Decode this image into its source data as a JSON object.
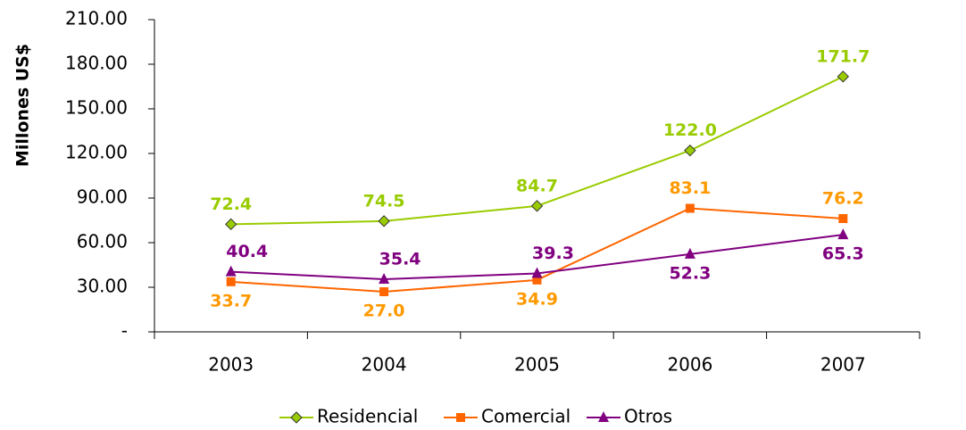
{
  "chart_data": {
    "type": "line",
    "ylabel": "Millones US$",
    "categories": [
      "2003",
      "2004",
      "2005",
      "2006",
      "2007"
    ],
    "series": [
      {
        "name": "Residencial",
        "color": "#99cc00",
        "label_color": "#99cc00",
        "marker": "diamond",
        "values": [
          72.4,
          74.5,
          84.7,
          122.0,
          171.7
        ],
        "value_labels": [
          "72.4",
          "74.5",
          "84.7",
          "122.0",
          "171.7"
        ]
      },
      {
        "name": "Comercial",
        "color": "#ff6600",
        "label_color": "#ff9900",
        "marker": "square",
        "values": [
          33.7,
          27.0,
          34.9,
          83.1,
          76.2
        ],
        "value_labels": [
          "33.7",
          "27.0",
          "34.9",
          "83.1",
          "76.2"
        ]
      },
      {
        "name": "Otros",
        "color": "#800080",
        "label_color": "#800080",
        "marker": "triangle",
        "values": [
          40.4,
          35.4,
          39.3,
          52.3,
          65.3
        ],
        "value_labels": [
          "40.4",
          "35.4",
          "39.3",
          "52.3",
          "65.3"
        ]
      }
    ],
    "ylim": [
      0,
      210
    ],
    "yticks": [
      {
        "value": 0,
        "label": "-"
      },
      {
        "value": 30,
        "label": "30.00"
      },
      {
        "value": 60,
        "label": "60.00"
      },
      {
        "value": 90,
        "label": "90.00"
      },
      {
        "value": 120,
        "label": "120.00"
      },
      {
        "value": 150,
        "label": "150.00"
      },
      {
        "value": 180,
        "label": "180.00"
      },
      {
        "value": 210,
        "label": "210.00"
      }
    ],
    "legend": "bottom"
  }
}
